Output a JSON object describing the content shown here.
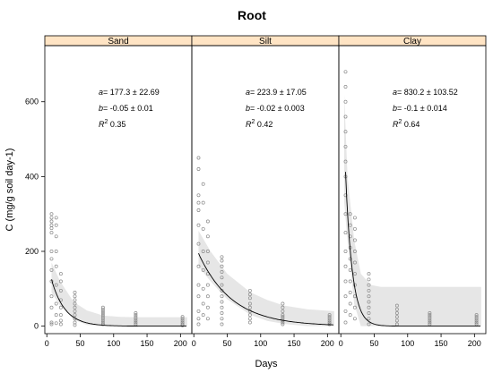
{
  "chart_data": {
    "type": "scatter",
    "title": "Root",
    "xlabel": "Days",
    "ylabel": "C (mg/g soil day-1)",
    "xlim": [
      -3,
      217
    ],
    "ylim": [
      -20,
      750
    ],
    "x_ticks": [
      0,
      50,
      100,
      150,
      200
    ],
    "y_ticks": [
      0,
      200,
      400,
      600
    ],
    "panels": [
      {
        "name": "Sand",
        "fit": {
          "a": 177.3,
          "b": -0.05
        },
        "annotation": {
          "a": "177.3 ± 22.69",
          "b": "-0.05 ± 0.01",
          "r2": "0.35"
        },
        "band": {
          "x": [
            7,
            20,
            40,
            60,
            85,
            110,
            135,
            170,
            210
          ],
          "lower": [
            90,
            55,
            18,
            3,
            0,
            0,
            0,
            0,
            0
          ],
          "upper": [
            170,
            120,
            65,
            42,
            28,
            25,
            24,
            24,
            24
          ]
        },
        "points": [
          [
            7,
            300
          ],
          [
            7,
            290
          ],
          [
            7,
            280
          ],
          [
            7,
            270
          ],
          [
            7,
            262
          ],
          [
            7,
            250
          ],
          [
            7,
            200
          ],
          [
            7,
            180
          ],
          [
            7,
            150
          ],
          [
            7,
            120
          ],
          [
            7,
            80
          ],
          [
            7,
            50
          ],
          [
            7,
            10
          ],
          [
            7,
            5
          ],
          [
            14,
            290
          ],
          [
            14,
            270
          ],
          [
            14,
            240
          ],
          [
            14,
            200
          ],
          [
            14,
            160
          ],
          [
            14,
            110
          ],
          [
            14,
            60
          ],
          [
            14,
            30
          ],
          [
            14,
            8
          ],
          [
            21,
            140
          ],
          [
            21,
            120
          ],
          [
            21,
            95
          ],
          [
            21,
            70
          ],
          [
            21,
            50
          ],
          [
            21,
            30
          ],
          [
            21,
            15
          ],
          [
            21,
            5
          ],
          [
            42,
            90
          ],
          [
            42,
            80
          ],
          [
            42,
            70
          ],
          [
            42,
            60
          ],
          [
            42,
            50
          ],
          [
            42,
            40
          ],
          [
            42,
            30
          ],
          [
            42,
            20
          ],
          [
            42,
            10
          ],
          [
            42,
            3
          ],
          [
            84,
            50
          ],
          [
            84,
            45
          ],
          [
            84,
            40
          ],
          [
            84,
            35
          ],
          [
            84,
            30
          ],
          [
            84,
            25
          ],
          [
            84,
            20
          ],
          [
            84,
            15
          ],
          [
            84,
            10
          ],
          [
            84,
            5
          ],
          [
            133,
            35
          ],
          [
            133,
            30
          ],
          [
            133,
            25
          ],
          [
            133,
            20
          ],
          [
            133,
            15
          ],
          [
            133,
            10
          ],
          [
            133,
            5
          ],
          [
            203,
            25
          ],
          [
            203,
            20
          ],
          [
            203,
            15
          ],
          [
            203,
            10
          ],
          [
            203,
            5
          ],
          [
            203,
            2
          ]
        ]
      },
      {
        "name": "Silt",
        "fit": {
          "a": 223.9,
          "b": -0.02
        },
        "annotation": {
          "a": "223.9 ± 17.05",
          "b": "-0.02 ± 0.003",
          "r2": "0.42"
        },
        "band": {
          "x": [
            7,
            25,
            50,
            85,
            110,
            135,
            170,
            210
          ],
          "lower": [
            160,
            120,
            72,
            30,
            14,
            6,
            0,
            0
          ],
          "upper": [
            255,
            200,
            140,
            90,
            70,
            55,
            45,
            40
          ]
        },
        "points": [
          [
            7,
            450
          ],
          [
            7,
            420
          ],
          [
            7,
            350
          ],
          [
            7,
            330
          ],
          [
            7,
            310
          ],
          [
            7,
            270
          ],
          [
            7,
            220
          ],
          [
            7,
            160
          ],
          [
            7,
            110
          ],
          [
            7,
            80
          ],
          [
            7,
            40
          ],
          [
            7,
            20
          ],
          [
            7,
            5
          ],
          [
            14,
            380
          ],
          [
            14,
            330
          ],
          [
            14,
            260
          ],
          [
            14,
            200
          ],
          [
            14,
            150
          ],
          [
            14,
            100
          ],
          [
            14,
            60
          ],
          [
            14,
            30
          ],
          [
            21,
            280
          ],
          [
            21,
            240
          ],
          [
            21,
            200
          ],
          [
            21,
            170
          ],
          [
            21,
            140
          ],
          [
            21,
            110
          ],
          [
            21,
            80
          ],
          [
            21,
            50
          ],
          [
            21,
            20
          ],
          [
            42,
            185
          ],
          [
            42,
            175
          ],
          [
            42,
            160
          ],
          [
            42,
            145
          ],
          [
            42,
            130
          ],
          [
            42,
            110
          ],
          [
            42,
            95
          ],
          [
            42,
            80
          ],
          [
            42,
            65
          ],
          [
            42,
            50
          ],
          [
            42,
            35
          ],
          [
            42,
            20
          ],
          [
            42,
            5
          ],
          [
            84,
            95
          ],
          [
            84,
            85
          ],
          [
            84,
            75
          ],
          [
            84,
            60
          ],
          [
            84,
            50
          ],
          [
            84,
            40
          ],
          [
            84,
            30
          ],
          [
            84,
            20
          ],
          [
            84,
            10
          ],
          [
            133,
            60
          ],
          [
            133,
            50
          ],
          [
            133,
            40
          ],
          [
            133,
            30
          ],
          [
            133,
            25
          ],
          [
            133,
            20
          ],
          [
            133,
            15
          ],
          [
            133,
            10
          ],
          [
            133,
            5
          ],
          [
            203,
            30
          ],
          [
            203,
            25
          ],
          [
            203,
            20
          ],
          [
            203,
            15
          ],
          [
            203,
            10
          ],
          [
            203,
            5
          ]
        ]
      },
      {
        "name": "Clay",
        "fit": {
          "a": 830.2,
          "b": -0.1
        },
        "annotation": {
          "a": "830.2 ± 103.52",
          "b": "-0.1 ± 0.014",
          "r2": "0.64"
        },
        "band": {
          "x": [
            5,
            10,
            20,
            30,
            45,
            60,
            100,
            150,
            210
          ],
          "lower": [
            330,
            230,
            60,
            0,
            0,
            0,
            0,
            0,
            0
          ],
          "upper": [
            620,
            400,
            230,
            140,
            110,
            105,
            105,
            105,
            105
          ]
        },
        "points": [
          [
            7,
            680
          ],
          [
            7,
            640
          ],
          [
            7,
            600
          ],
          [
            7,
            560
          ],
          [
            7,
            520
          ],
          [
            7,
            480
          ],
          [
            7,
            440
          ],
          [
            7,
            400
          ],
          [
            7,
            350
          ],
          [
            7,
            300
          ],
          [
            7,
            250
          ],
          [
            7,
            200
          ],
          [
            7,
            160
          ],
          [
            7,
            120
          ],
          [
            7,
            80
          ],
          [
            7,
            40
          ],
          [
            7,
            10
          ],
          [
            14,
            300
          ],
          [
            14,
            270
          ],
          [
            14,
            240
          ],
          [
            14,
            210
          ],
          [
            14,
            180
          ],
          [
            14,
            150
          ],
          [
            14,
            120
          ],
          [
            14,
            90
          ],
          [
            14,
            60
          ],
          [
            14,
            30
          ],
          [
            21,
            290
          ],
          [
            21,
            260
          ],
          [
            21,
            230
          ],
          [
            21,
            200
          ],
          [
            21,
            170
          ],
          [
            21,
            140
          ],
          [
            21,
            110
          ],
          [
            21,
            80
          ],
          [
            21,
            50
          ],
          [
            21,
            20
          ],
          [
            42,
            140
          ],
          [
            42,
            125
          ],
          [
            42,
            110
          ],
          [
            42,
            95
          ],
          [
            42,
            80
          ],
          [
            42,
            65
          ],
          [
            42,
            50
          ],
          [
            42,
            35
          ],
          [
            42,
            20
          ],
          [
            42,
            5
          ],
          [
            84,
            55
          ],
          [
            84,
            45
          ],
          [
            84,
            35
          ],
          [
            84,
            25
          ],
          [
            84,
            15
          ],
          [
            84,
            5
          ],
          [
            133,
            35
          ],
          [
            133,
            30
          ],
          [
            133,
            25
          ],
          [
            133,
            20
          ],
          [
            133,
            15
          ],
          [
            133,
            10
          ],
          [
            133,
            5
          ],
          [
            203,
            30
          ],
          [
            203,
            25
          ],
          [
            203,
            20
          ],
          [
            203,
            15
          ],
          [
            203,
            10
          ],
          [
            203,
            5
          ]
        ]
      }
    ]
  },
  "colors": {
    "strip_fill": "#ffe4c4",
    "band_fill": "#e6e6e6",
    "point_stroke": "#8c8c8c",
    "fit_line": "#000000"
  }
}
